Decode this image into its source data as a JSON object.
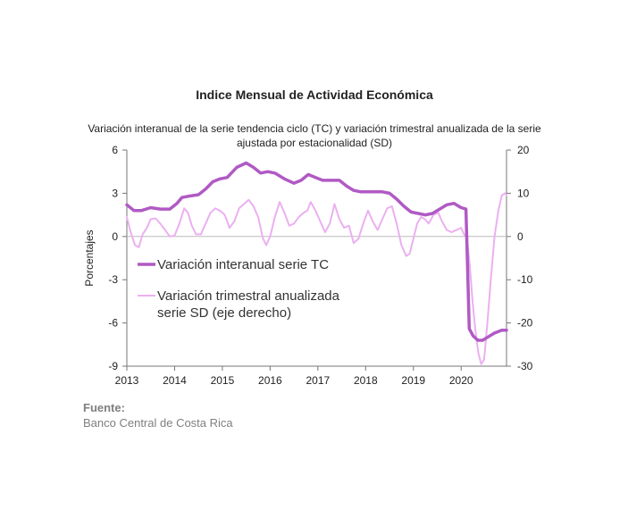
{
  "header": {
    "title": "Indice Mensual de  Actividad Económica",
    "subtitle": "Variación interanual de la serie tendencia ciclo (TC) y variación trimestral anualizada de la serie ajustada por estacionalidad (SD)"
  },
  "footer": {
    "source_label": "Fuente:",
    "source_value": "Banco Central de Costa Rica"
  },
  "chart_data": {
    "type": "line",
    "title": "Indice Mensual de  Actividad Económica",
    "subtitle": "Variación interanual de la serie tendencia ciclo (TC) y variación trimestral anualizada de la serie ajustada por estacionalidad (SD)",
    "xlabel": "",
    "ylabel": "Porcentajes",
    "x_range": [
      2013.0,
      2020.95
    ],
    "x_ticks": [
      2013,
      2014,
      2015,
      2016,
      2017,
      2018,
      2019,
      2020
    ],
    "y_left": {
      "lim": [
        -9,
        6
      ],
      "ticks": [
        6,
        3,
        0,
        -3,
        -6,
        -9
      ]
    },
    "y_right": {
      "lim": [
        -30,
        20
      ],
      "ticks": [
        20,
        10,
        0,
        -10,
        -20,
        -30
      ]
    },
    "grid": false,
    "legend_position": "left-middle",
    "colors": {
      "tc": "#b05ac4",
      "sd": "#ebb0f0",
      "axis": "#777777"
    },
    "series": [
      {
        "name": "Variación interanual serie TC",
        "axis": "left",
        "points": [
          [
            2013.0,
            2.2
          ],
          [
            2013.15,
            1.8
          ],
          [
            2013.3,
            1.8
          ],
          [
            2013.5,
            2.0
          ],
          [
            2013.7,
            1.9
          ],
          [
            2013.9,
            1.9
          ],
          [
            2014.05,
            2.3
          ],
          [
            2014.15,
            2.7
          ],
          [
            2014.3,
            2.8
          ],
          [
            2014.5,
            2.9
          ],
          [
            2014.65,
            3.3
          ],
          [
            2014.8,
            3.8
          ],
          [
            2014.95,
            4.0
          ],
          [
            2015.1,
            4.1
          ],
          [
            2015.3,
            4.8
          ],
          [
            2015.5,
            5.1
          ],
          [
            2015.65,
            4.8
          ],
          [
            2015.8,
            4.4
          ],
          [
            2015.95,
            4.5
          ],
          [
            2016.1,
            4.4
          ],
          [
            2016.3,
            4.0
          ],
          [
            2016.5,
            3.7
          ],
          [
            2016.65,
            3.9
          ],
          [
            2016.8,
            4.3
          ],
          [
            2016.95,
            4.1
          ],
          [
            2017.1,
            3.9
          ],
          [
            2017.3,
            3.9
          ],
          [
            2017.45,
            3.9
          ],
          [
            2017.6,
            3.5
          ],
          [
            2017.75,
            3.2
          ],
          [
            2017.9,
            3.1
          ],
          [
            2018.05,
            3.1
          ],
          [
            2018.2,
            3.1
          ],
          [
            2018.35,
            3.1
          ],
          [
            2018.5,
            3.0
          ],
          [
            2018.65,
            2.6
          ],
          [
            2018.8,
            2.1
          ],
          [
            2018.95,
            1.7
          ],
          [
            2019.1,
            1.6
          ],
          [
            2019.25,
            1.5
          ],
          [
            2019.4,
            1.6
          ],
          [
            2019.55,
            1.9
          ],
          [
            2019.7,
            2.2
          ],
          [
            2019.85,
            2.3
          ],
          [
            2020.0,
            2.0
          ],
          [
            2020.1,
            1.9
          ],
          [
            2020.17,
            -6.4
          ],
          [
            2020.25,
            -6.9
          ],
          [
            2020.35,
            -7.2
          ],
          [
            2020.45,
            -7.2
          ],
          [
            2020.55,
            -7.0
          ],
          [
            2020.7,
            -6.7
          ],
          [
            2020.85,
            -6.5
          ],
          [
            2020.95,
            -6.5
          ]
        ]
      },
      {
        "name": "Variación trimestral anualizada serie SD (eje derecho)",
        "axis": "right",
        "points": [
          [
            2013.0,
            4.5
          ],
          [
            2013.08,
            1.0
          ],
          [
            2013.17,
            -2.0
          ],
          [
            2013.25,
            -2.5
          ],
          [
            2013.33,
            0.5
          ],
          [
            2013.42,
            2.0
          ],
          [
            2013.5,
            4.0
          ],
          [
            2013.6,
            4.2
          ],
          [
            2013.7,
            3.0
          ],
          [
            2013.8,
            1.5
          ],
          [
            2013.9,
            0.0
          ],
          [
            2014.0,
            0.2
          ],
          [
            2014.1,
            3.0
          ],
          [
            2014.2,
            6.5
          ],
          [
            2014.28,
            5.5
          ],
          [
            2014.36,
            2.5
          ],
          [
            2014.45,
            0.5
          ],
          [
            2014.55,
            0.5
          ],
          [
            2014.65,
            3.0
          ],
          [
            2014.75,
            5.5
          ],
          [
            2014.85,
            6.5
          ],
          [
            2014.95,
            6.0
          ],
          [
            2015.05,
            5.0
          ],
          [
            2015.15,
            2.0
          ],
          [
            2015.25,
            3.5
          ],
          [
            2015.35,
            6.5
          ],
          [
            2015.45,
            7.5
          ],
          [
            2015.55,
            8.5
          ],
          [
            2015.65,
            7.0
          ],
          [
            2015.75,
            4.5
          ],
          [
            2015.85,
            -0.5
          ],
          [
            2015.92,
            -2.0
          ],
          [
            2016.0,
            0.0
          ],
          [
            2016.1,
            4.5
          ],
          [
            2016.2,
            8.0
          ],
          [
            2016.3,
            5.5
          ],
          [
            2016.4,
            2.5
          ],
          [
            2016.5,
            3.0
          ],
          [
            2016.6,
            4.5
          ],
          [
            2016.7,
            5.5
          ],
          [
            2016.78,
            6.0
          ],
          [
            2016.85,
            8.0
          ],
          [
            2016.95,
            6.0
          ],
          [
            2017.05,
            3.5
          ],
          [
            2017.15,
            1.0
          ],
          [
            2017.25,
            3.0
          ],
          [
            2017.35,
            7.5
          ],
          [
            2017.45,
            4.0
          ],
          [
            2017.55,
            2.0
          ],
          [
            2017.65,
            2.5
          ],
          [
            2017.75,
            -1.5
          ],
          [
            2017.85,
            -0.5
          ],
          [
            2017.95,
            3.0
          ],
          [
            2018.05,
            6.0
          ],
          [
            2018.15,
            3.5
          ],
          [
            2018.25,
            1.5
          ],
          [
            2018.35,
            4.0
          ],
          [
            2018.45,
            6.5
          ],
          [
            2018.55,
            7.0
          ],
          [
            2018.65,
            3.0
          ],
          [
            2018.75,
            -2.0
          ],
          [
            2018.85,
            -4.5
          ],
          [
            2018.92,
            -4.0
          ],
          [
            2019.0,
            -0.5
          ],
          [
            2019.08,
            3.0
          ],
          [
            2019.16,
            4.5
          ],
          [
            2019.24,
            4.0
          ],
          [
            2019.32,
            3.0
          ],
          [
            2019.42,
            5.0
          ],
          [
            2019.52,
            5.5
          ],
          [
            2019.6,
            3.5
          ],
          [
            2019.7,
            1.5
          ],
          [
            2019.8,
            1.0
          ],
          [
            2019.9,
            1.5
          ],
          [
            2020.0,
            2.0
          ],
          [
            2020.06,
            0.5
          ],
          [
            2020.12,
            0.0
          ],
          [
            2020.18,
            -6.5
          ],
          [
            2020.24,
            -15.0
          ],
          [
            2020.3,
            -22.0
          ],
          [
            2020.36,
            -27.0
          ],
          [
            2020.42,
            -29.5
          ],
          [
            2020.48,
            -28.5
          ],
          [
            2020.55,
            -20.0
          ],
          [
            2020.62,
            -10.0
          ],
          [
            2020.7,
            0.0
          ],
          [
            2020.78,
            6.0
          ],
          [
            2020.85,
            9.5
          ],
          [
            2020.92,
            10.0
          ],
          [
            2020.95,
            9.5
          ]
        ]
      }
    ]
  }
}
